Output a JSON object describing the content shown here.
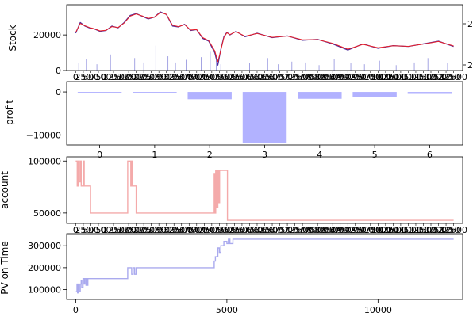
{
  "chart_data": [
    {
      "id": "stock",
      "type": "line",
      "ylabel": "Stock",
      "xlim": [
        -300,
        12800
      ],
      "ylim": [
        0,
        37000
      ],
      "yticks": [
        0,
        20000
      ],
      "ytick_labels": [
        "0",
        "20000"
      ],
      "xtick_labels_visible": "overlapping 1e3-spaced labels (unreadable)",
      "right_axis_ticks": [
        "2",
        "2"
      ],
      "series": [
        {
          "style": "price",
          "color": "#4a2a9a",
          "x": [
            0,
            150,
            300,
            450,
            600,
            800,
            1000,
            1200,
            1400,
            1600,
            1800,
            2000,
            2200,
            2400,
            2600,
            2800,
            3000,
            3200,
            3400,
            3600,
            3800,
            4000,
            4200,
            4400,
            4600,
            4700,
            4800,
            4900,
            5000,
            5100,
            5300,
            5600,
            6000,
            6500,
            7000,
            7500,
            8000,
            8500,
            9000,
            9500,
            10000,
            10500,
            11000,
            11500,
            12000,
            12500
          ],
          "y": [
            21000,
            27000,
            25000,
            24000,
            23500,
            22000,
            22500,
            25000,
            24000,
            27000,
            31000,
            32000,
            30500,
            29000,
            30000,
            33000,
            31500,
            25000,
            24500,
            26000,
            22500,
            23000,
            18000,
            16500,
            10000,
            3000,
            12000,
            19000,
            21500,
            20000,
            22000,
            19000,
            21000,
            18500,
            19500,
            17000,
            17500,
            15000,
            11500,
            15000,
            12500,
            14000,
            13500,
            15000,
            16500,
            13500
          ]
        },
        {
          "style": "moving-average",
          "color": "#e8202a",
          "x": [
            0,
            150,
            300,
            450,
            600,
            800,
            1000,
            1200,
            1400,
            1600,
            1800,
            2000,
            2200,
            2400,
            2600,
            2800,
            3000,
            3200,
            3400,
            3600,
            3800,
            4000,
            4200,
            4400,
            4600,
            4700,
            4800,
            4900,
            5000,
            5100,
            5300,
            5600,
            6000,
            6500,
            7000,
            7500,
            8000,
            8500,
            9000,
            9500,
            10000,
            10500,
            11000,
            11500,
            12000,
            12500
          ],
          "y": [
            21500,
            26500,
            25200,
            24200,
            23600,
            22300,
            22600,
            24700,
            24200,
            26700,
            30600,
            31800,
            30700,
            29300,
            30000,
            32600,
            31600,
            25500,
            24700,
            25800,
            22800,
            23000,
            18500,
            16800,
            11000,
            5000,
            11500,
            18500,
            21200,
            20200,
            21800,
            19300,
            20800,
            18700,
            19400,
            17300,
            17400,
            15300,
            12000,
            14700,
            12800,
            13900,
            13600,
            14900,
            16300,
            13800
          ]
        },
        {
          "style": "volume",
          "color": "#9b9be0",
          "x": [
            100,
            350,
            700,
            1150,
            1500,
            1950,
            2250,
            2650,
            3050,
            3300,
            3650,
            4150,
            4450,
            4650,
            4800,
            5200,
            5750,
            6350,
            6700,
            7150,
            7600,
            8050,
            8550,
            9100,
            9550,
            10050,
            10600,
            11200,
            11650,
            12300
          ],
          "y": [
            4000,
            6500,
            3500,
            9000,
            5000,
            7000,
            4500,
            14000,
            8000,
            4500,
            6000,
            7500,
            10500,
            5500,
            3500,
            6000,
            4000,
            7000,
            3500,
            5000,
            4500,
            3000,
            6500,
            4000,
            3500,
            5500,
            3000,
            4500,
            7000,
            4000
          ]
        }
      ]
    },
    {
      "id": "profit",
      "type": "bar",
      "ylabel": "profit",
      "categories": [
        "0",
        "1",
        "2",
        "3",
        "4",
        "5",
        "6"
      ],
      "values": [
        -300,
        -150,
        -1700,
        -11800,
        -1600,
        -1100,
        -450
      ],
      "color": "#b2b2ff",
      "ylim": [
        -12300,
        2400
      ],
      "yticks": [
        0,
        -10000
      ],
      "ytick_labels": [
        "0",
        "−10000"
      ],
      "xlim": [
        -0.6,
        6.6
      ]
    },
    {
      "id": "account",
      "type": "line",
      "ylabel": "account",
      "color": "#f4aaaa",
      "xlim": [
        -300,
        12800
      ],
      "ylim": [
        40000,
        104000
      ],
      "yticks": [
        50000,
        100000
      ],
      "ytick_labels": [
        "50000",
        "100000"
      ],
      "x": [
        0,
        50,
        80,
        110,
        150,
        180,
        220,
        260,
        280,
        300,
        400,
        480,
        490,
        1700,
        1720,
        1760,
        1820,
        1850,
        1880,
        1950,
        2000,
        4550,
        4580,
        4600,
        4630,
        4660,
        4700,
        4730,
        4760,
        4800,
        5000,
        5020,
        12500
      ],
      "y": [
        100000,
        76000,
        100000,
        80000,
        100000,
        76000,
        76000,
        100000,
        76000,
        76000,
        76000,
        76000,
        50000,
        50000,
        100000,
        100000,
        76000,
        100000,
        76000,
        76000,
        50000,
        50000,
        88000,
        50000,
        91000,
        55000,
        91000,
        60000,
        91000,
        91000,
        91000,
        43000,
        43000
      ]
    },
    {
      "id": "pv",
      "type": "line",
      "ylabel": "PV on Time",
      "color": "#aaaaee",
      "xlim": [
        -300,
        12800
      ],
      "ylim": [
        55000,
        355000
      ],
      "yticks": [
        100000,
        200000,
        300000
      ],
      "ytick_labels": [
        "100000",
        "200000",
        "300000"
      ],
      "xticks": [
        0,
        5000,
        10000
      ],
      "xtick_labels": [
        "0",
        "5000",
        "10000"
      ],
      "x": [
        0,
        40,
        60,
        90,
        110,
        150,
        180,
        200,
        240,
        280,
        300,
        320,
        340,
        400,
        480,
        500,
        1500,
        1700,
        1720,
        1800,
        1850,
        1900,
        1950,
        2000,
        4500,
        4580,
        4620,
        4660,
        4700,
        4750,
        4800,
        4900,
        5000,
        5050,
        5100,
        5200,
        12500
      ],
      "y": [
        90000,
        125000,
        85000,
        125000,
        90000,
        125000,
        140000,
        110000,
        150000,
        125000,
        150000,
        150000,
        120000,
        150000,
        150000,
        150000,
        150000,
        150000,
        200000,
        200000,
        170000,
        200000,
        170000,
        200000,
        200000,
        230000,
        250000,
        250000,
        290000,
        270000,
        300000,
        320000,
        310000,
        330000,
        310000,
        330000,
        330000
      ]
    }
  ]
}
